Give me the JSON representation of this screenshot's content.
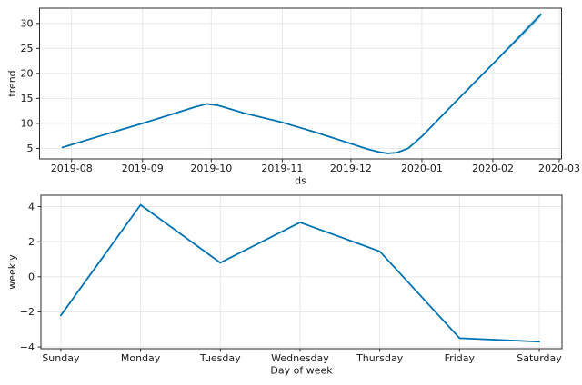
{
  "figure": {
    "background": "#ffffff",
    "grid_color": "#e8e8e8",
    "spine_color": "#2b2b2b",
    "text_color": "#1a1a1a"
  },
  "chart_data": [
    {
      "id": "trend",
      "type": "line",
      "title": "",
      "xlabel": "ds",
      "ylabel": "trend",
      "line_color": "#0072B2",
      "band_color": "#0072B2",
      "band_opacity": 0.22,
      "grid": true,
      "legend": "none",
      "x_tick_labels": [
        "2019-08",
        "2019-09",
        "2019-10",
        "2019-11",
        "2019-12",
        "2020-01",
        "2020-02",
        "2020-03"
      ],
      "y_ticks": [
        5,
        10,
        15,
        20,
        25,
        30
      ],
      "y_tick_labels": [
        "5",
        "10",
        "15",
        "20",
        "25",
        "30"
      ],
      "xlim": [
        "2019-07-18",
        "2020-03-02"
      ],
      "ylim": [
        2.9,
        33.05
      ],
      "points": [
        [
          "2019-07-28",
          5.2
        ],
        [
          "2019-08-15",
          7.7
        ],
        [
          "2019-09-01",
          10.0
        ],
        [
          "2019-09-15",
          12.0
        ],
        [
          "2019-09-24",
          13.3
        ],
        [
          "2019-09-29",
          13.9
        ],
        [
          "2019-10-04",
          13.6
        ],
        [
          "2019-10-15",
          12.1
        ],
        [
          "2019-11-01",
          10.2
        ],
        [
          "2019-11-15",
          8.3
        ],
        [
          "2019-11-30",
          6.1
        ],
        [
          "2019-12-08",
          4.9
        ],
        [
          "2019-12-13",
          4.3
        ],
        [
          "2019-12-17",
          4.0
        ],
        [
          "2019-12-21",
          4.15
        ],
        [
          "2019-12-26",
          5.0
        ],
        [
          "2020-01-01",
          7.4
        ],
        [
          "2020-01-15",
          14.0
        ],
        [
          "2020-02-01",
          21.9
        ],
        [
          "2020-02-10",
          26.1
        ],
        [
          "2020-02-22",
          31.8
        ]
      ],
      "uncertainty": [
        [
          "2020-02-05",
          23.5,
          24.1
        ],
        [
          "2020-02-10",
          25.7,
          26.5
        ],
        [
          "2020-02-16",
          28.3,
          29.5
        ],
        [
          "2020-02-22",
          31.2,
          32.4
        ]
      ]
    },
    {
      "id": "weekly",
      "type": "line",
      "title": "",
      "xlabel": "Day of week",
      "ylabel": "weekly",
      "line_color": "#0072B2",
      "grid": true,
      "legend": "none",
      "categories": [
        "Sunday",
        "Monday",
        "Tuesday",
        "Wednesday",
        "Thursday",
        "Friday",
        "Saturday"
      ],
      "values": [
        -2.2,
        4.1,
        0.8,
        3.1,
        1.45,
        -3.5,
        -3.7
      ],
      "y_ticks": [
        -4,
        -2,
        0,
        2,
        4
      ],
      "y_tick_labels": [
        "−4",
        "−2",
        "0",
        "2",
        "4"
      ],
      "ylim": [
        -4.1,
        4.65
      ],
      "x_pad": [
        0.25,
        0.285
      ]
    }
  ]
}
